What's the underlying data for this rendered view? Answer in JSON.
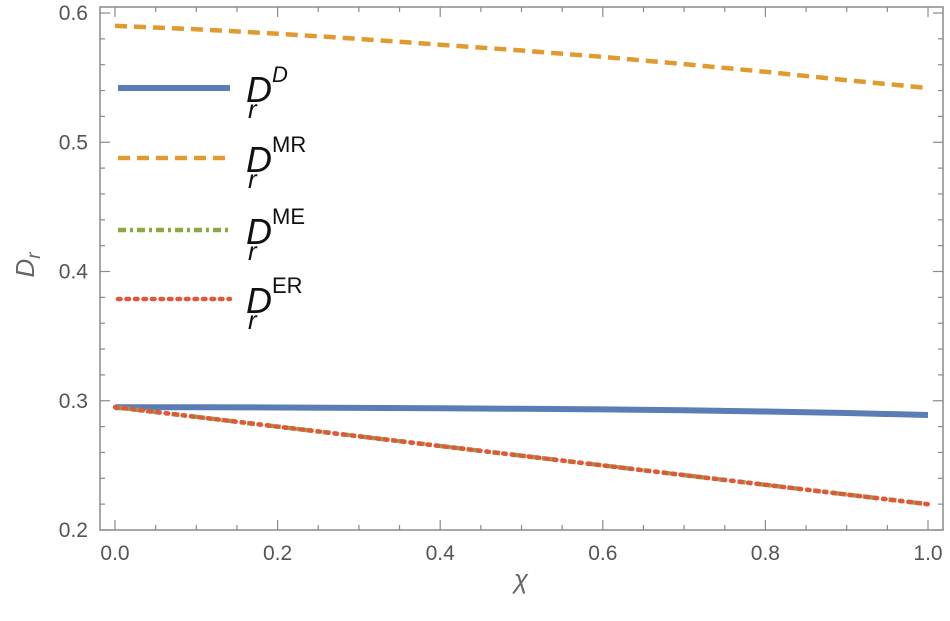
{
  "chart_data": {
    "type": "line",
    "xlabel": "χ",
    "ylabel_main": "D",
    "ylabel_sub": "r",
    "xlim": [
      0.0,
      1.0
    ],
    "ylim": [
      0.2,
      0.6
    ],
    "x_ticks": [
      0.0,
      0.2,
      0.4,
      0.6,
      0.8,
      1.0
    ],
    "x_tick_labels": [
      "0.0",
      "0.2",
      "0.4",
      "0.6",
      "0.8",
      "1.0"
    ],
    "y_ticks": [
      0.2,
      0.3,
      0.4,
      0.5,
      0.6
    ],
    "y_tick_labels": [
      "0.2",
      "0.3",
      "0.4",
      "0.5",
      "0.6"
    ],
    "legend_position": "top-left",
    "grid": false,
    "x": [
      0.0,
      0.1,
      0.2,
      0.3,
      0.4,
      0.5,
      0.6,
      0.7,
      0.8,
      0.9,
      1.0
    ],
    "series": [
      {
        "legend_main": "D",
        "legend_sub": "r",
        "legend_sup": "D",
        "color": "#5b7db5",
        "style": "solid",
        "y": [
          0.295,
          0.295,
          0.2948,
          0.2945,
          0.2942,
          0.2938,
          0.2933,
          0.2926,
          0.2917,
          0.2905,
          0.289
        ]
      },
      {
        "legend_main": "D",
        "legend_sub": "r",
        "legend_sup": "MR",
        "color": "#e09a2e",
        "style": "dashed",
        "y": [
          0.59,
          0.5875,
          0.584,
          0.58,
          0.5755,
          0.571,
          0.566,
          0.5605,
          0.5545,
          0.548,
          0.542
        ]
      },
      {
        "legend_main": "D",
        "legend_sub": "r",
        "legend_sup": "ME",
        "color": "#8aa845",
        "style": "dashdot",
        "y": [
          0.295,
          0.2875,
          0.28,
          0.2725,
          0.265,
          0.2575,
          0.25,
          0.2425,
          0.235,
          0.2275,
          0.22
        ]
      },
      {
        "legend_main": "D",
        "legend_sub": "r",
        "legend_sup": "ER",
        "color": "#e0573a",
        "style": "dotted",
        "y": [
          0.295,
          0.2875,
          0.28,
          0.2725,
          0.265,
          0.2575,
          0.25,
          0.2425,
          0.235,
          0.2275,
          0.22
        ]
      }
    ]
  }
}
